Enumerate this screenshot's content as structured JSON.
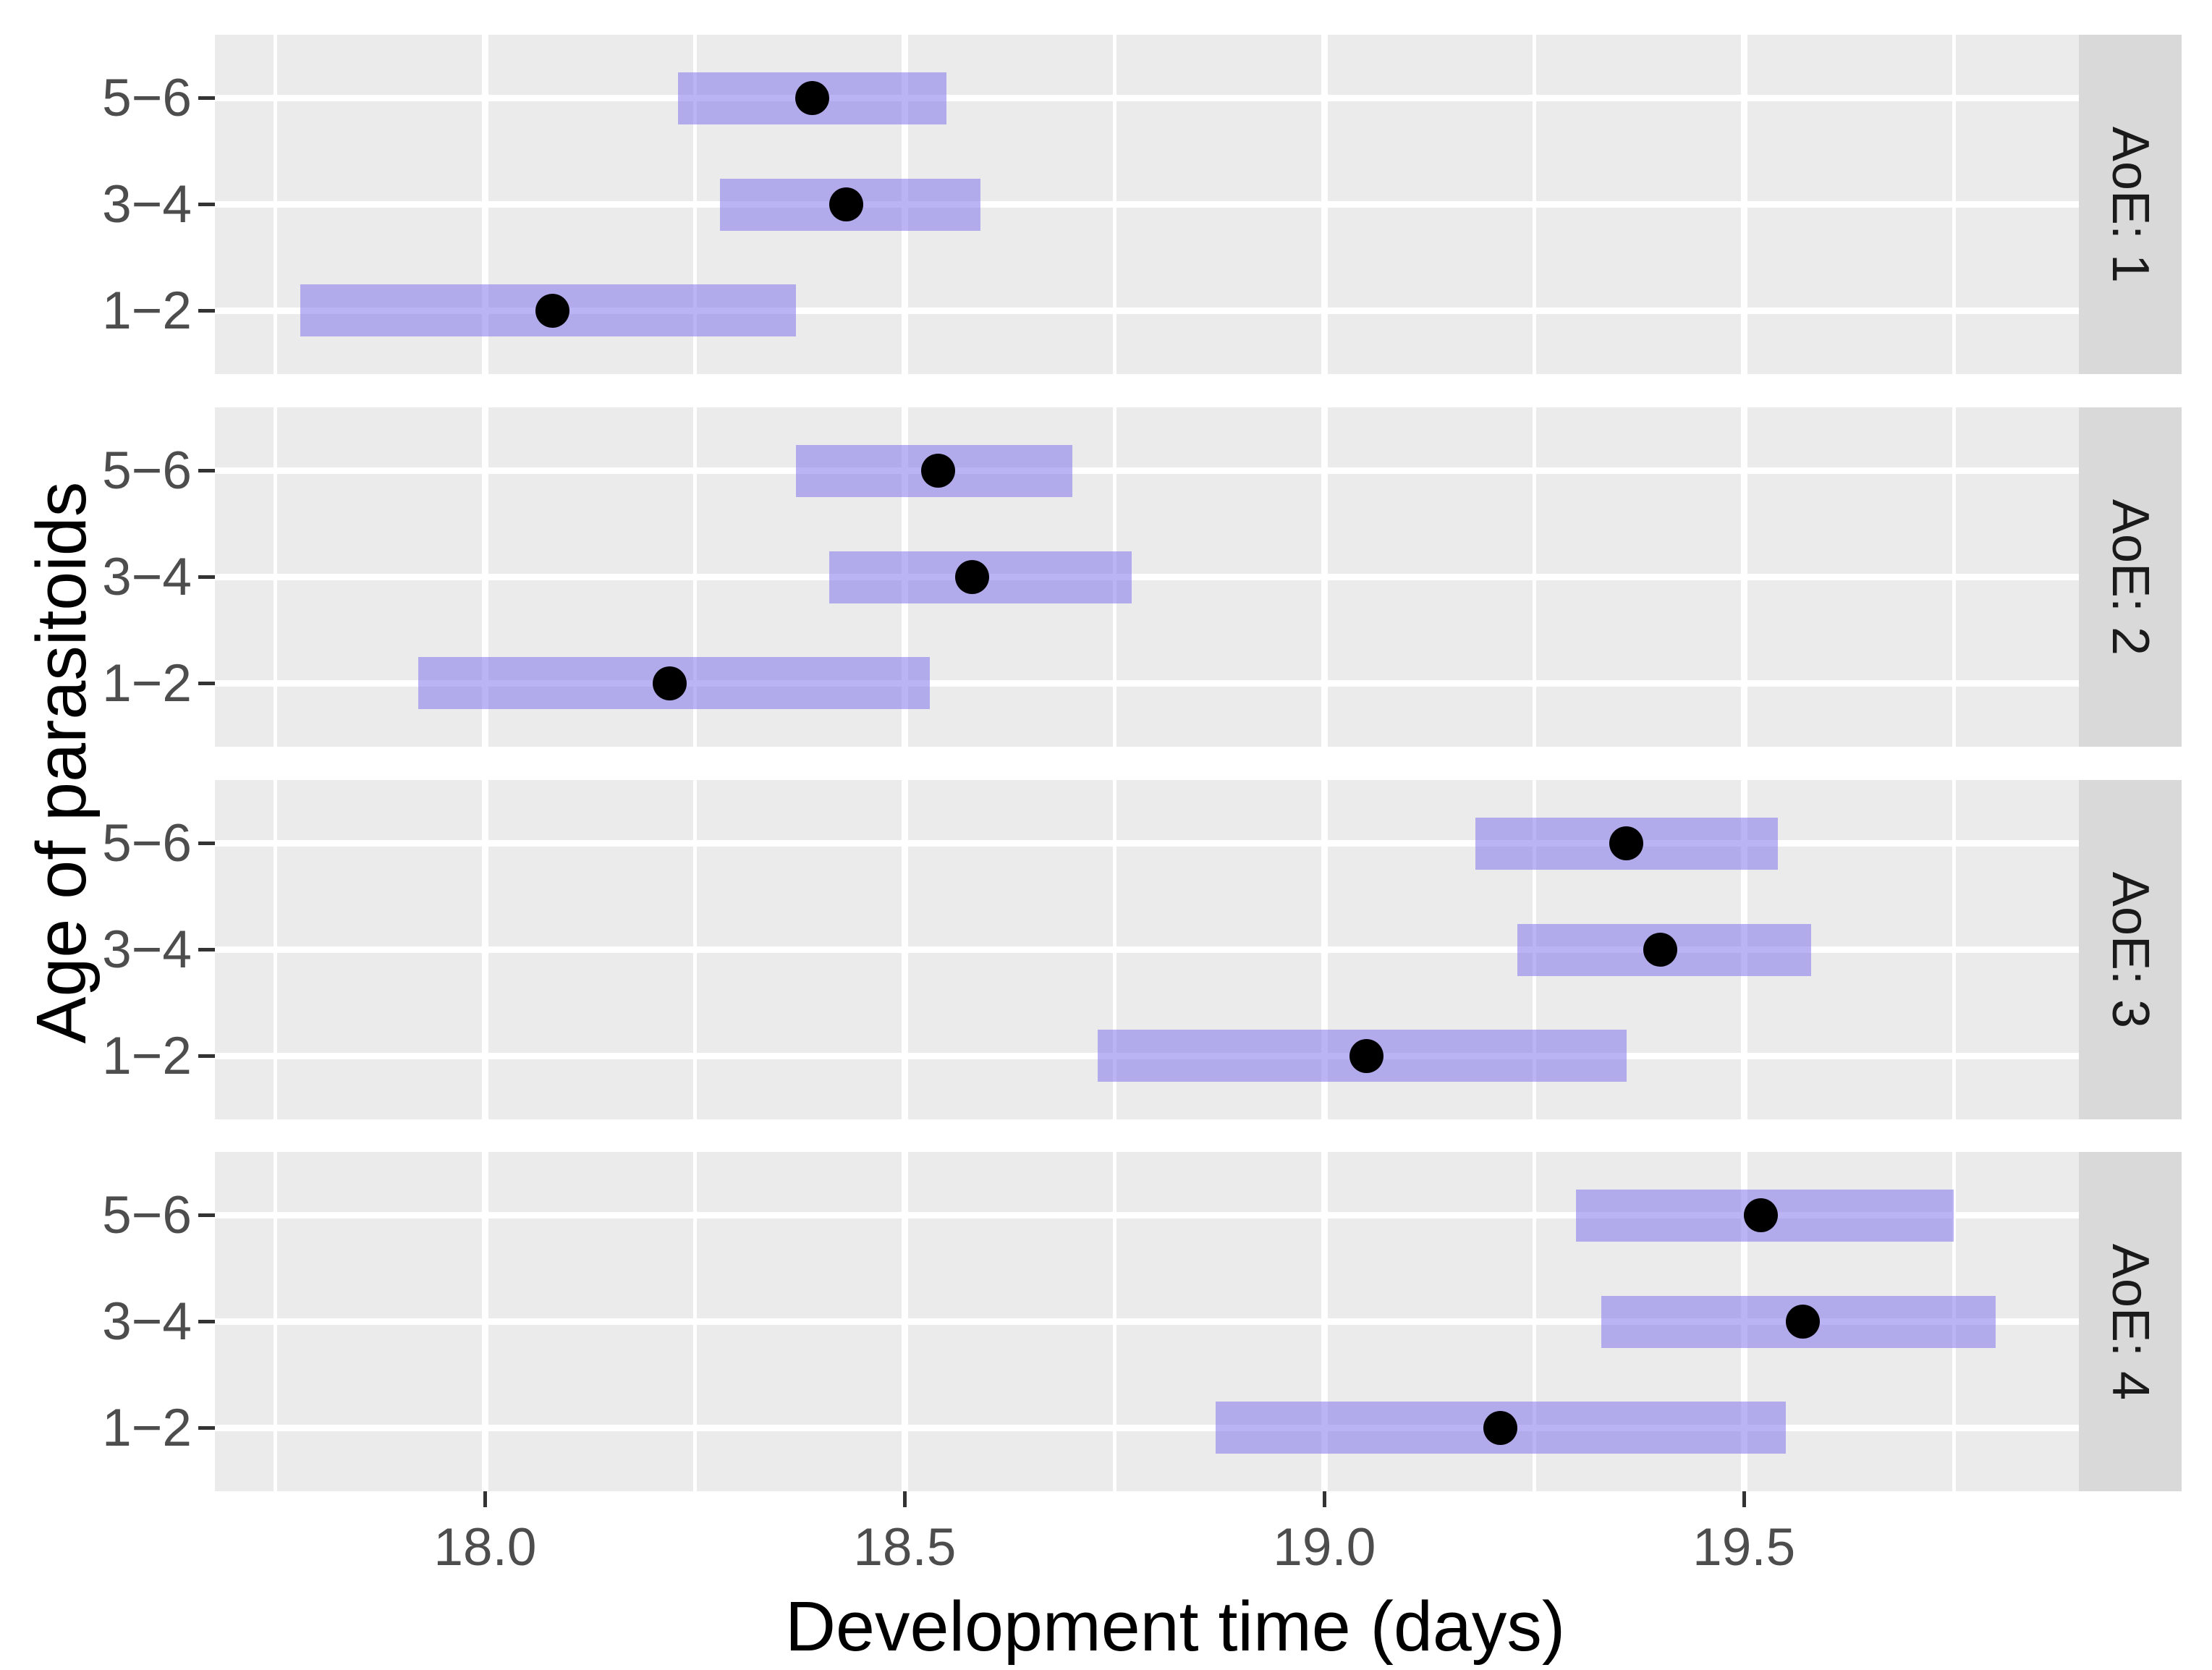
{
  "figure": {
    "x_axis_title": "Development time (days)",
    "y_axis_title": "Age of parasitoids",
    "colors": {
      "panel_background": "#EBEBEB",
      "strip_background": "#D9D9D9",
      "gridline": "#FFFFFF",
      "bar_fill": "rgba(124,114,236,0.53)",
      "point": "#000000",
      "axis_text": "#4D4D4D",
      "tick_mark": "#333333"
    }
  },
  "chart_data": {
    "type": "pointrange",
    "title": "",
    "xlabel": "Development time (days)",
    "ylabel": "Age of parasitoids",
    "xlim": [
      17.678,
      19.899
    ],
    "grid": "on",
    "x_ticks": [
      18.0,
      18.5,
      19.0,
      19.5
    ],
    "x_tick_labels": [
      "18.0",
      "18.5",
      "19.0",
      "19.5"
    ],
    "x_minor_ticks": [
      17.75,
      18.25,
      18.75,
      19.25,
      19.75
    ],
    "categories_top_to_bottom": [
      "5−6",
      "3−4",
      "1−2"
    ],
    "facets": [
      {
        "label": "AoE: 1",
        "rows": [
          {
            "category": "5-6",
            "point": 18.39,
            "lower": 18.23,
            "upper": 18.55
          },
          {
            "category": "3-4",
            "point": 18.43,
            "lower": 18.28,
            "upper": 18.59
          },
          {
            "category": "1-2",
            "point": 18.08,
            "lower": 17.78,
            "upper": 18.37
          }
        ]
      },
      {
        "label": "AoE: 2",
        "rows": [
          {
            "category": "5-6",
            "point": 18.54,
            "lower": 18.37,
            "upper": 18.7
          },
          {
            "category": "3-4",
            "point": 18.58,
            "lower": 18.41,
            "upper": 18.77
          },
          {
            "category": "1-2",
            "point": 18.22,
            "lower": 17.92,
            "upper": 18.53
          }
        ]
      },
      {
        "label": "AoE: 3",
        "rows": [
          {
            "category": "5-6",
            "point": 19.36,
            "lower": 19.18,
            "upper": 19.54
          },
          {
            "category": "3-4",
            "point": 19.4,
            "lower": 19.23,
            "upper": 19.58
          },
          {
            "category": "1-2",
            "point": 19.05,
            "lower": 18.73,
            "upper": 19.36
          }
        ]
      },
      {
        "label": "AoE: 4",
        "rows": [
          {
            "category": "5-6",
            "point": 19.52,
            "lower": 19.3,
            "upper": 19.75
          },
          {
            "category": "3-4",
            "point": 19.57,
            "lower": 19.33,
            "upper": 19.8
          },
          {
            "category": "1-2",
            "point": 19.21,
            "lower": 18.87,
            "upper": 19.55
          }
        ]
      }
    ]
  }
}
